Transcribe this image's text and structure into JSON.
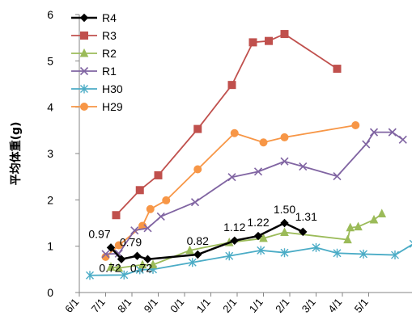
{
  "chart_data": {
    "type": "line",
    "ylabel": "平均体重(g)",
    "xlabel": "",
    "ylim": [
      0,
      6
    ],
    "yticks": [
      "0",
      "1",
      "2",
      "3",
      "4",
      "5",
      "6"
    ],
    "xticks": [
      "6/1",
      "7/1",
      "8/1",
      "9/1",
      "0/1",
      "1/1",
      "2/1",
      "1/1",
      "2/1",
      "3/1",
      "4/1",
      "5/1"
    ],
    "legend_position": "top-left",
    "grid": false,
    "series": [
      {
        "name": "R4",
        "color": "#000000",
        "marker": "diamond",
        "points": [
          [
            1.2,
            0.97
          ],
          [
            1.6,
            0.72
          ],
          [
            2.2,
            0.79
          ],
          [
            2.6,
            0.72
          ],
          [
            4.5,
            0.82
          ],
          [
            5.9,
            1.12
          ],
          [
            6.8,
            1.22
          ],
          [
            7.8,
            1.5
          ],
          [
            8.5,
            1.31
          ]
        ],
        "labels": [
          "0.97",
          "0.72",
          "0.79",
          "0.72",
          "0.82",
          "1.12",
          "1.22",
          "1.50",
          "1.31"
        ]
      },
      {
        "name": "R3",
        "color": "#c0504d",
        "marker": "square",
        "points": [
          [
            1.4,
            1.67
          ],
          [
            2.3,
            2.21
          ],
          [
            3.0,
            2.53
          ],
          [
            4.5,
            3.53
          ],
          [
            5.8,
            4.48
          ],
          [
            6.6,
            5.4
          ],
          [
            7.2,
            5.43
          ],
          [
            7.8,
            5.58
          ],
          [
            9.8,
            4.83
          ]
        ]
      },
      {
        "name": "R2",
        "color": "#9bbb59",
        "marker": "triangle",
        "points": [
          [
            1.2,
            0.55
          ],
          [
            1.5,
            0.53
          ],
          [
            2.4,
            0.6
          ],
          [
            2.8,
            0.6
          ],
          [
            4.2,
            0.91
          ],
          [
            5.7,
            1.08
          ],
          [
            7.0,
            1.17
          ],
          [
            7.8,
            1.3
          ],
          [
            10.2,
            1.14
          ],
          [
            10.3,
            1.4
          ],
          [
            10.6,
            1.42
          ],
          [
            11.2,
            1.57
          ],
          [
            11.5,
            1.7
          ]
        ]
      },
      {
        "name": "R1",
        "color": "#8064a2",
        "marker": "x",
        "points": [
          [
            1.0,
            0.83
          ],
          [
            1.5,
            0.84
          ],
          [
            2.1,
            1.34
          ],
          [
            2.6,
            1.39
          ],
          [
            3.1,
            1.64
          ],
          [
            4.4,
            1.95
          ],
          [
            5.8,
            2.49
          ],
          [
            6.8,
            2.61
          ],
          [
            7.8,
            2.83
          ],
          [
            8.5,
            2.72
          ],
          [
            9.8,
            2.51
          ],
          [
            10.9,
            3.2
          ],
          [
            11.2,
            3.46
          ],
          [
            11.9,
            3.46
          ],
          [
            12.3,
            3.3
          ]
        ]
      },
      {
        "name": "H30",
        "color": "#4bacc6",
        "marker": "asterisk",
        "points": [
          [
            0.4,
            0.37
          ],
          [
            1.7,
            0.38
          ],
          [
            2.3,
            0.49
          ],
          [
            2.8,
            0.5
          ],
          [
            4.3,
            0.65
          ],
          [
            5.7,
            0.79
          ],
          [
            6.9,
            0.91
          ],
          [
            7.8,
            0.86
          ],
          [
            9.0,
            0.97
          ],
          [
            9.8,
            0.85
          ],
          [
            10.8,
            0.83
          ],
          [
            12.0,
            0.81
          ],
          [
            12.7,
            1.05
          ],
          [
            12.9,
            1.1
          ],
          [
            13.4,
            1.48
          ]
        ]
      },
      {
        "name": "H29",
        "color": "#f79646",
        "marker": "circle",
        "points": [
          [
            1.0,
            0.77
          ],
          [
            1.5,
            1.02
          ],
          [
            2.4,
            1.44
          ],
          [
            2.7,
            1.8
          ],
          [
            3.3,
            1.99
          ],
          [
            4.5,
            2.66
          ],
          [
            5.9,
            3.44
          ],
          [
            7.0,
            3.24
          ],
          [
            7.8,
            3.35
          ],
          [
            10.5,
            3.61
          ]
        ]
      }
    ]
  }
}
